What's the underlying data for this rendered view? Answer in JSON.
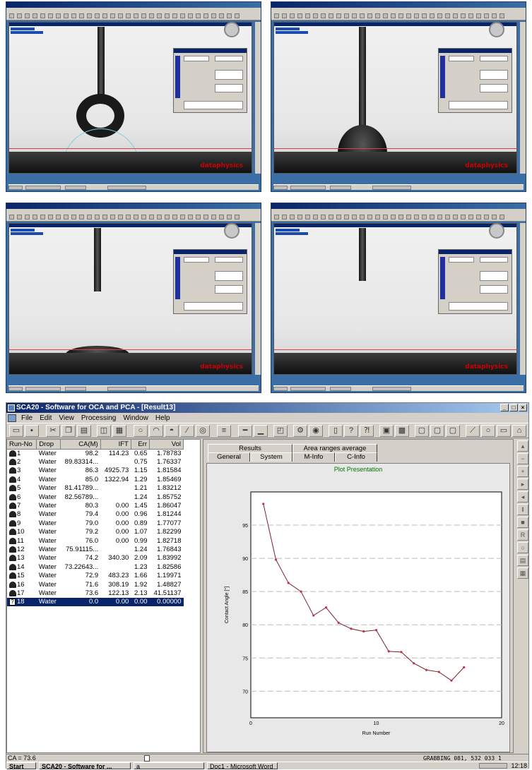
{
  "app": {
    "title": "SCA20 - Software for OCA and PCA - [Result13]",
    "menu": [
      "File",
      "Edit",
      "View",
      "Processing",
      "Window",
      "Help"
    ]
  },
  "table": {
    "headers": [
      "Run-No",
      "Drop",
      "CA(M)",
      "IFT",
      "Err",
      "Vol"
    ],
    "rows": [
      [
        "1",
        "Water",
        "98.2",
        "114.23",
        "0.65",
        "1.78783"
      ],
      [
        "2",
        "Water",
        "89.83314...",
        "",
        "0.75",
        "1.76337"
      ],
      [
        "3",
        "Water",
        "86.3",
        "4925.73",
        "1.15",
        "1.81584"
      ],
      [
        "4",
        "Water",
        "85.0",
        "1322.94",
        "1.29",
        "1.85469"
      ],
      [
        "5",
        "Water",
        "81.41789...",
        "",
        "1.21",
        "1.83212"
      ],
      [
        "6",
        "Water",
        "82.56789...",
        "",
        "1.24",
        "1.85752"
      ],
      [
        "7",
        "Water",
        "80.3",
        "0.00",
        "1.45",
        "1.86047"
      ],
      [
        "8",
        "Water",
        "79.4",
        "0.00",
        "0.96",
        "1.81244"
      ],
      [
        "9",
        "Water",
        "79.0",
        "0.00",
        "0.89",
        "1.77077"
      ],
      [
        "10",
        "Water",
        "79.2",
        "0.00",
        "1.07",
        "1.82299"
      ],
      [
        "11",
        "Water",
        "76.0",
        "0.00",
        "0.99",
        "1.82718"
      ],
      [
        "12",
        "Water",
        "75.91115...",
        "",
        "1.24",
        "1.76843"
      ],
      [
        "13",
        "Water",
        "74.2",
        "340.30",
        "2.09",
        "1.83992"
      ],
      [
        "14",
        "Water",
        "73.22643...",
        "",
        "1.23",
        "1.82586"
      ],
      [
        "15",
        "Water",
        "72.9",
        "483.23",
        "1.66",
        "1.19971"
      ],
      [
        "16",
        "Water",
        "71.6",
        "308.19",
        "1.92",
        "1.48827"
      ],
      [
        "17",
        "Water",
        "73.6",
        "122.13",
        "2.13",
        "41.51137"
      ],
      [
        "18",
        "Water",
        "0.0",
        "0.00",
        "0.00",
        "0.00000"
      ]
    ]
  },
  "tabs": {
    "row1": [
      "Results",
      "Area ranges average"
    ],
    "row2": [
      "General",
      "System",
      "M-Info",
      "C-Info"
    ]
  },
  "plot": {
    "title": "Plot Presentation",
    "xlabel": "Run Number",
    "ylabel": "Contact Angle [°]"
  },
  "chart_data": {
    "type": "line",
    "title": "Plot Presentation",
    "xlabel": "Run Number",
    "ylabel": "Contact Angle [°]",
    "xlim": [
      0,
      20
    ],
    "ylim": [
      66,
      100
    ],
    "xticks": [
      "0",
      "10",
      "20"
    ],
    "yticks": [
      "70",
      "75",
      "80",
      "85",
      "90",
      "95"
    ],
    "grid": true,
    "x": [
      1,
      2,
      3,
      4,
      5,
      6,
      7,
      8,
      9,
      10,
      11,
      12,
      13,
      14,
      15,
      16,
      17
    ],
    "y": [
      98.2,
      89.8,
      86.3,
      85.0,
      81.4,
      82.6,
      80.3,
      79.4,
      79.0,
      79.2,
      76.0,
      75.9,
      74.2,
      73.2,
      72.9,
      71.6,
      73.6
    ]
  },
  "status": {
    "ca": "CA = 73.6",
    "grabbing": "GRABBING  081, 532    033    1"
  },
  "taskbar": {
    "start": "Start",
    "items": [
      "SCA20 - Software for ...",
      "a",
      "Doc1 - Microsoft Word"
    ],
    "clock": "12:18"
  },
  "thumbnails": {
    "logo": "dataphysics"
  }
}
